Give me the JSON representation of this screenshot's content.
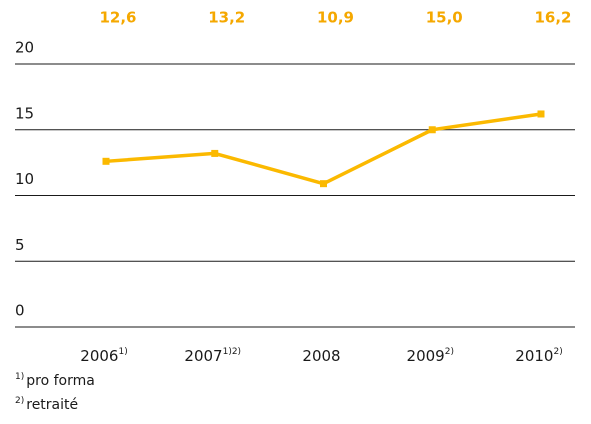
{
  "chart_data": {
    "type": "line",
    "categories": [
      "2006",
      "2007",
      "2008",
      "2009",
      "2010"
    ],
    "category_notes": [
      "1)",
      "1)2)",
      null,
      "2)",
      "2)"
    ],
    "series": [
      {
        "color": "#fbb900",
        "values": [
          12.6,
          13.2,
          10.9,
          15.0,
          16.2
        ],
        "value_labels": [
          "12,6",
          "13,2",
          "10,9",
          "15,0",
          "16,2"
        ]
      }
    ],
    "ylim": [
      0,
      20
    ],
    "yticks": [
      0,
      5,
      10,
      15,
      20
    ],
    "grid": true,
    "footnotes": [
      {
        "mark": "1)",
        "text": "pro forma"
      },
      {
        "mark": "2)",
        "text": "retraité"
      }
    ]
  }
}
